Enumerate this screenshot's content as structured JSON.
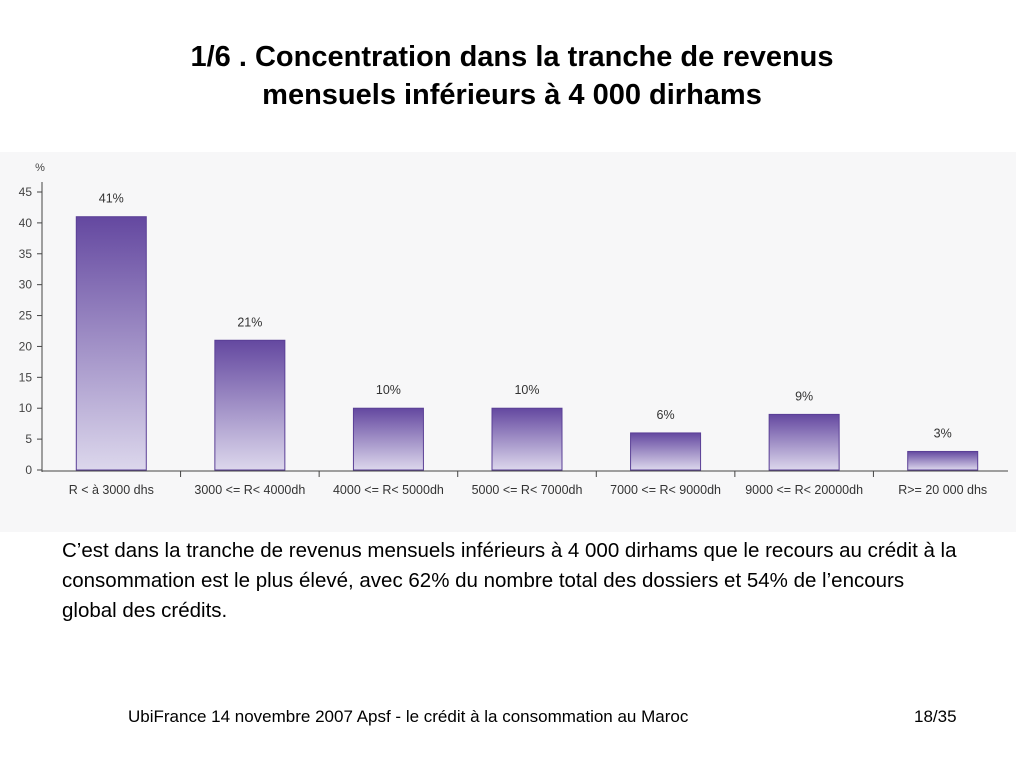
{
  "slide": {
    "title_line1": "1/6 . Concentration dans la tranche de revenus",
    "title_line2": "mensuels inférieurs à 4 000 dirhams",
    "body_text": "C’est dans la tranche de revenus mensuels inférieurs à 4 000 dirhams que le recours au crédit à la consommation est le plus élevé, avec 62% du nombre total des dossiers et 54% de l’encours global des crédits.",
    "footer_text": "UbiFrance 14 novembre 2007  Apsf - le crédit à la consommation au Maroc",
    "page_number": "18/35"
  },
  "chart_data": {
    "type": "bar",
    "ylabel": "%",
    "ylim": [
      0,
      45
    ],
    "yticks": [
      0,
      5,
      10,
      15,
      20,
      25,
      30,
      35,
      40,
      45
    ],
    "categories": [
      "R < à 3000 dhs",
      "3000 <= R< 4000dh",
      "4000 <= R< 5000dh",
      "5000 <= R< 7000dh",
      "7000 <= R< 9000dh",
      "9000 <= R< 20000dh",
      "R>= 20 000 dhs"
    ],
    "values": [
      41,
      21,
      10,
      10,
      6,
      9,
      3
    ],
    "data_labels": [
      "41%",
      "21%",
      "10%",
      "10%",
      "6%",
      "9%",
      "3%"
    ],
    "colors": {
      "bar_top": "#6448a0",
      "bar_bottom": "#dcd7ec",
      "bar_edge": "#5a3f96"
    },
    "grid": false,
    "legend": "none"
  }
}
